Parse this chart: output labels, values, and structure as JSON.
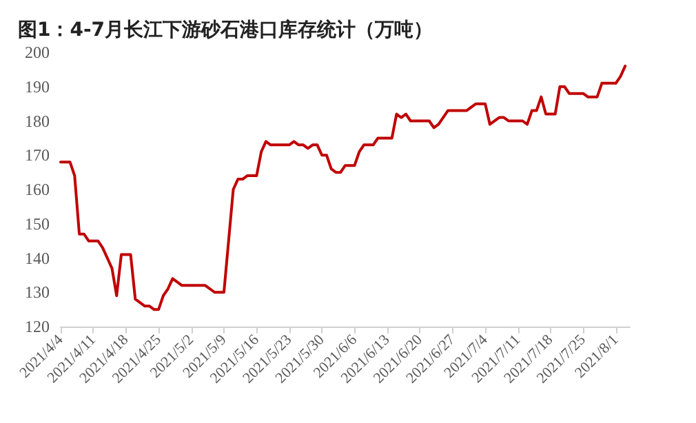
{
  "chart_data": {
    "type": "line",
    "title": "图1：4-7月长江下游砂石港口库存统计（万吨）",
    "x": [
      "2021-04-04",
      "2021-04-06",
      "2021-04-07",
      "2021-04-08",
      "2021-04-09",
      "2021-04-10",
      "2021-04-12",
      "2021-04-13",
      "2021-04-14",
      "2021-04-15",
      "2021-04-16",
      "2021-04-17",
      "2021-04-19",
      "2021-04-20",
      "2021-04-21",
      "2021-04-22",
      "2021-04-23",
      "2021-04-24",
      "2021-04-25",
      "2021-04-26",
      "2021-04-27",
      "2021-04-28",
      "2021-04-30",
      "2021-05-05",
      "2021-05-07",
      "2021-05-09",
      "2021-05-11",
      "2021-05-12",
      "2021-05-13",
      "2021-05-14",
      "2021-05-16",
      "2021-05-17",
      "2021-05-18",
      "2021-05-19",
      "2021-05-23",
      "2021-05-24",
      "2021-05-25",
      "2021-05-26",
      "2021-05-27",
      "2021-05-28",
      "2021-05-29",
      "2021-05-30",
      "2021-05-31",
      "2021-06-01",
      "2021-06-02",
      "2021-06-03",
      "2021-06-04",
      "2021-06-06",
      "2021-06-07",
      "2021-06-08",
      "2021-06-10",
      "2021-06-11",
      "2021-06-14",
      "2021-06-15",
      "2021-06-16",
      "2021-06-17",
      "2021-06-18",
      "2021-06-22",
      "2021-06-23",
      "2021-06-24",
      "2021-06-26",
      "2021-06-30",
      "2021-07-02",
      "2021-07-04",
      "2021-07-05",
      "2021-07-07",
      "2021-07-08",
      "2021-07-09",
      "2021-07-12",
      "2021-07-13",
      "2021-07-14",
      "2021-07-15",
      "2021-07-16",
      "2021-07-17",
      "2021-07-19",
      "2021-07-20",
      "2021-07-21",
      "2021-07-22",
      "2021-07-25",
      "2021-07-26",
      "2021-07-28",
      "2021-07-29",
      "2021-08-01",
      "2021-08-02",
      "2021-08-03"
    ],
    "series": [
      {
        "color": "#c00000",
        "values": [
          168,
          168,
          164,
          147,
          147,
          145,
          145,
          143,
          140,
          137,
          129,
          141,
          141,
          128,
          127,
          126,
          126,
          125,
          125,
          129,
          131,
          134,
          132,
          132,
          130,
          130,
          160,
          163,
          163,
          164,
          164,
          171,
          174,
          173,
          173,
          174,
          173,
          173,
          172,
          173,
          173,
          170,
          170,
          166,
          165,
          165,
          167,
          167,
          171,
          173,
          173,
          175,
          175,
          182,
          181,
          182,
          180,
          180,
          178,
          179,
          183,
          183,
          185,
          185,
          179,
          181,
          181,
          180,
          180,
          179,
          183,
          183,
          187,
          182,
          182,
          190,
          190,
          188,
          188,
          187,
          187,
          191,
          191,
          193,
          196
        ]
      }
    ],
    "xlim": [
      "2021-04-04",
      "2021-08-04"
    ],
    "xticks": [
      {
        "value": "2021-04-04",
        "label": "2021/4/4"
      },
      {
        "value": "2021-04-11",
        "label": "2021/4/11"
      },
      {
        "value": "2021-04-18",
        "label": "2021/4/18"
      },
      {
        "value": "2021-04-25",
        "label": "2021/4/25"
      },
      {
        "value": "2021-05-02",
        "label": "2021/5/2"
      },
      {
        "value": "2021-05-09",
        "label": "2021/5/9"
      },
      {
        "value": "2021-05-16",
        "label": "2021/5/16"
      },
      {
        "value": "2021-05-23",
        "label": "2021/5/23"
      },
      {
        "value": "2021-05-30",
        "label": "2021/5/30"
      },
      {
        "value": "2021-06-06",
        "label": "2021/6/6"
      },
      {
        "value": "2021-06-13",
        "label": "2021/6/13"
      },
      {
        "value": "2021-06-20",
        "label": "2021/6/20"
      },
      {
        "value": "2021-06-27",
        "label": "2021/6/27"
      },
      {
        "value": "2021-07-04",
        "label": "2021/7/4"
      },
      {
        "value": "2021-07-11",
        "label": "2021/7/11"
      },
      {
        "value": "2021-07-18",
        "label": "2021/7/18"
      },
      {
        "value": "2021-07-25",
        "label": "2021/7/25"
      },
      {
        "value": "2021-08-01",
        "label": "2021/8/1"
      }
    ],
    "ylim": [
      120,
      200
    ],
    "yticks": [
      120,
      130,
      140,
      150,
      160,
      170,
      180,
      190,
      200
    ],
    "grid": false,
    "marker": "none",
    "line_style": "solid"
  }
}
